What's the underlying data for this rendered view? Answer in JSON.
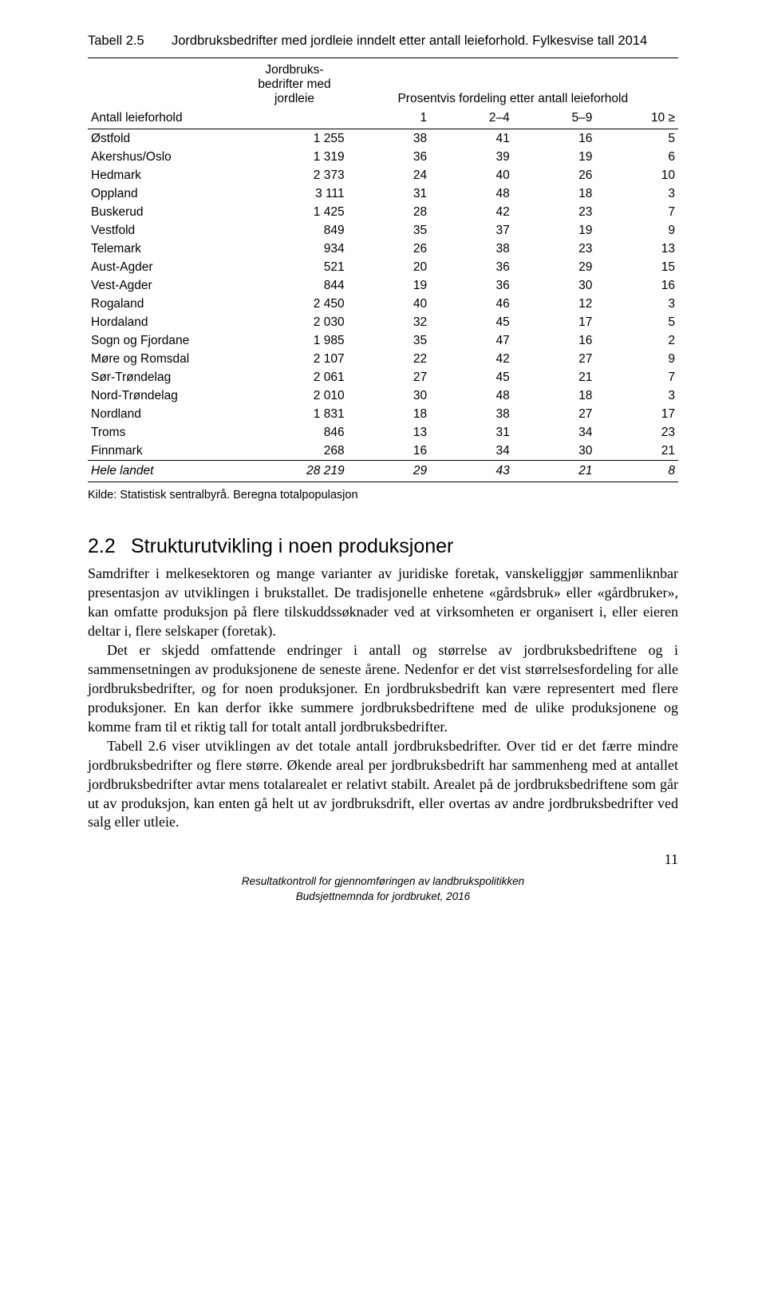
{
  "table": {
    "caption_label": "Tabell 2.5",
    "caption_text": "Jordbruksbedrifter med jordleie inndelt etter antall leieforhold. Fylkesvise tall 2014",
    "h1_col1": "Jordbruks-\nbedrifter med\njordleie",
    "h1_span": "Prosentvis fordeling etter antall leieforhold",
    "h2_name": "Antall leieforhold",
    "h2_c1": "1",
    "h2_c2": "2–4",
    "h2_c3": "5–9",
    "h2_c4": "10 ≥",
    "rows": [
      {
        "n": "Østfold",
        "v0": "1 255",
        "v1": "38",
        "v2": "41",
        "v3": "16",
        "v4": "5"
      },
      {
        "n": "Akershus/Oslo",
        "v0": "1 319",
        "v1": "36",
        "v2": "39",
        "v3": "19",
        "v4": "6"
      },
      {
        "n": "Hedmark",
        "v0": "2 373",
        "v1": "24",
        "v2": "40",
        "v3": "26",
        "v4": "10"
      },
      {
        "n": "Oppland",
        "v0": "3 111",
        "v1": "31",
        "v2": "48",
        "v3": "18",
        "v4": "3"
      },
      {
        "n": "Buskerud",
        "v0": "1 425",
        "v1": "28",
        "v2": "42",
        "v3": "23",
        "v4": "7"
      },
      {
        "n": "Vestfold",
        "v0": "849",
        "v1": "35",
        "v2": "37",
        "v3": "19",
        "v4": "9"
      },
      {
        "n": "Telemark",
        "v0": "934",
        "v1": "26",
        "v2": "38",
        "v3": "23",
        "v4": "13"
      },
      {
        "n": "Aust-Agder",
        "v0": "521",
        "v1": "20",
        "v2": "36",
        "v3": "29",
        "v4": "15"
      },
      {
        "n": "Vest-Agder",
        "v0": "844",
        "v1": "19",
        "v2": "36",
        "v3": "30",
        "v4": "16"
      },
      {
        "n": "Rogaland",
        "v0": "2 450",
        "v1": "40",
        "v2": "46",
        "v3": "12",
        "v4": "3"
      },
      {
        "n": "Hordaland",
        "v0": "2 030",
        "v1": "32",
        "v2": "45",
        "v3": "17",
        "v4": "5"
      },
      {
        "n": "Sogn og Fjordane",
        "v0": "1 985",
        "v1": "35",
        "v2": "47",
        "v3": "16",
        "v4": "2"
      },
      {
        "n": "Møre og Romsdal",
        "v0": "2 107",
        "v1": "22",
        "v2": "42",
        "v3": "27",
        "v4": "9"
      },
      {
        "n": "Sør-Trøndelag",
        "v0": "2 061",
        "v1": "27",
        "v2": "45",
        "v3": "21",
        "v4": "7"
      },
      {
        "n": "Nord-Trøndelag",
        "v0": "2 010",
        "v1": "30",
        "v2": "48",
        "v3": "18",
        "v4": "3"
      },
      {
        "n": "Nordland",
        "v0": "1 831",
        "v1": "18",
        "v2": "38",
        "v3": "27",
        "v4": "17"
      },
      {
        "n": "Troms",
        "v0": "846",
        "v1": "13",
        "v2": "31",
        "v3": "34",
        "v4": "23"
      },
      {
        "n": "Finnmark",
        "v0": "268",
        "v1": "16",
        "v2": "34",
        "v3": "30",
        "v4": "21"
      }
    ],
    "total": {
      "n": "Hele landet",
      "v0": "28 219",
      "v1": "29",
      "v2": "43",
      "v3": "21",
      "v4": "8"
    },
    "source": "Kilde: Statistisk sentralbyrå. Beregna totalpopulasjon"
  },
  "section": {
    "num": "2.2",
    "title": "Strukturutvikling i noen produksjoner",
    "p1": "Samdrifter i melkesektoren og mange varianter av juridiske foretak, vanskeliggjør sammenliknbar presentasjon av utviklingen i brukstallet. De tradisjonelle enhetene «gårdsbruk» eller «gårdbruker», kan omfatte produksjon på flere tilskuddssøknader ved at virksomheten er organisert i, eller eieren deltar i, flere selskaper (foretak).",
    "p2": "Det er skjedd omfattende endringer i antall og størrelse av jordbruksbedriftene og i sammensetningen av produksjonene de seneste årene. Nedenfor er det vist størrelsesfordeling for alle jordbruksbedrifter, og for noen produksjoner. En jordbruksbedrift kan være representert med flere produksjoner. En kan derfor ikke summere jordbruksbedriftene med de ulike produksjonene og komme fram til et riktig tall for totalt antall jordbruksbedrifter.",
    "p3": "Tabell 2.6 viser utviklingen av det totale antall jordbruksbedrifter. Over tid er det færre mindre jordbruksbedrifter og flere større. Økende areal per jordbruksbedrift har sammenheng med at antallet jordbruksbedrifter avtar mens totalarealet er relativt stabilt. Arealet på de jordbruksbedriftene som går ut av produksjon, kan enten gå helt ut av jordbruksdrift, eller overtas av andre jordbruksbedrifter ved salg eller utleie."
  },
  "pagenum": "11",
  "footer_l1": "Resultatkontroll for gjennomføringen av landbrukspolitikken",
  "footer_l2": "Budsjettnemnda for jordbruket, 2016"
}
